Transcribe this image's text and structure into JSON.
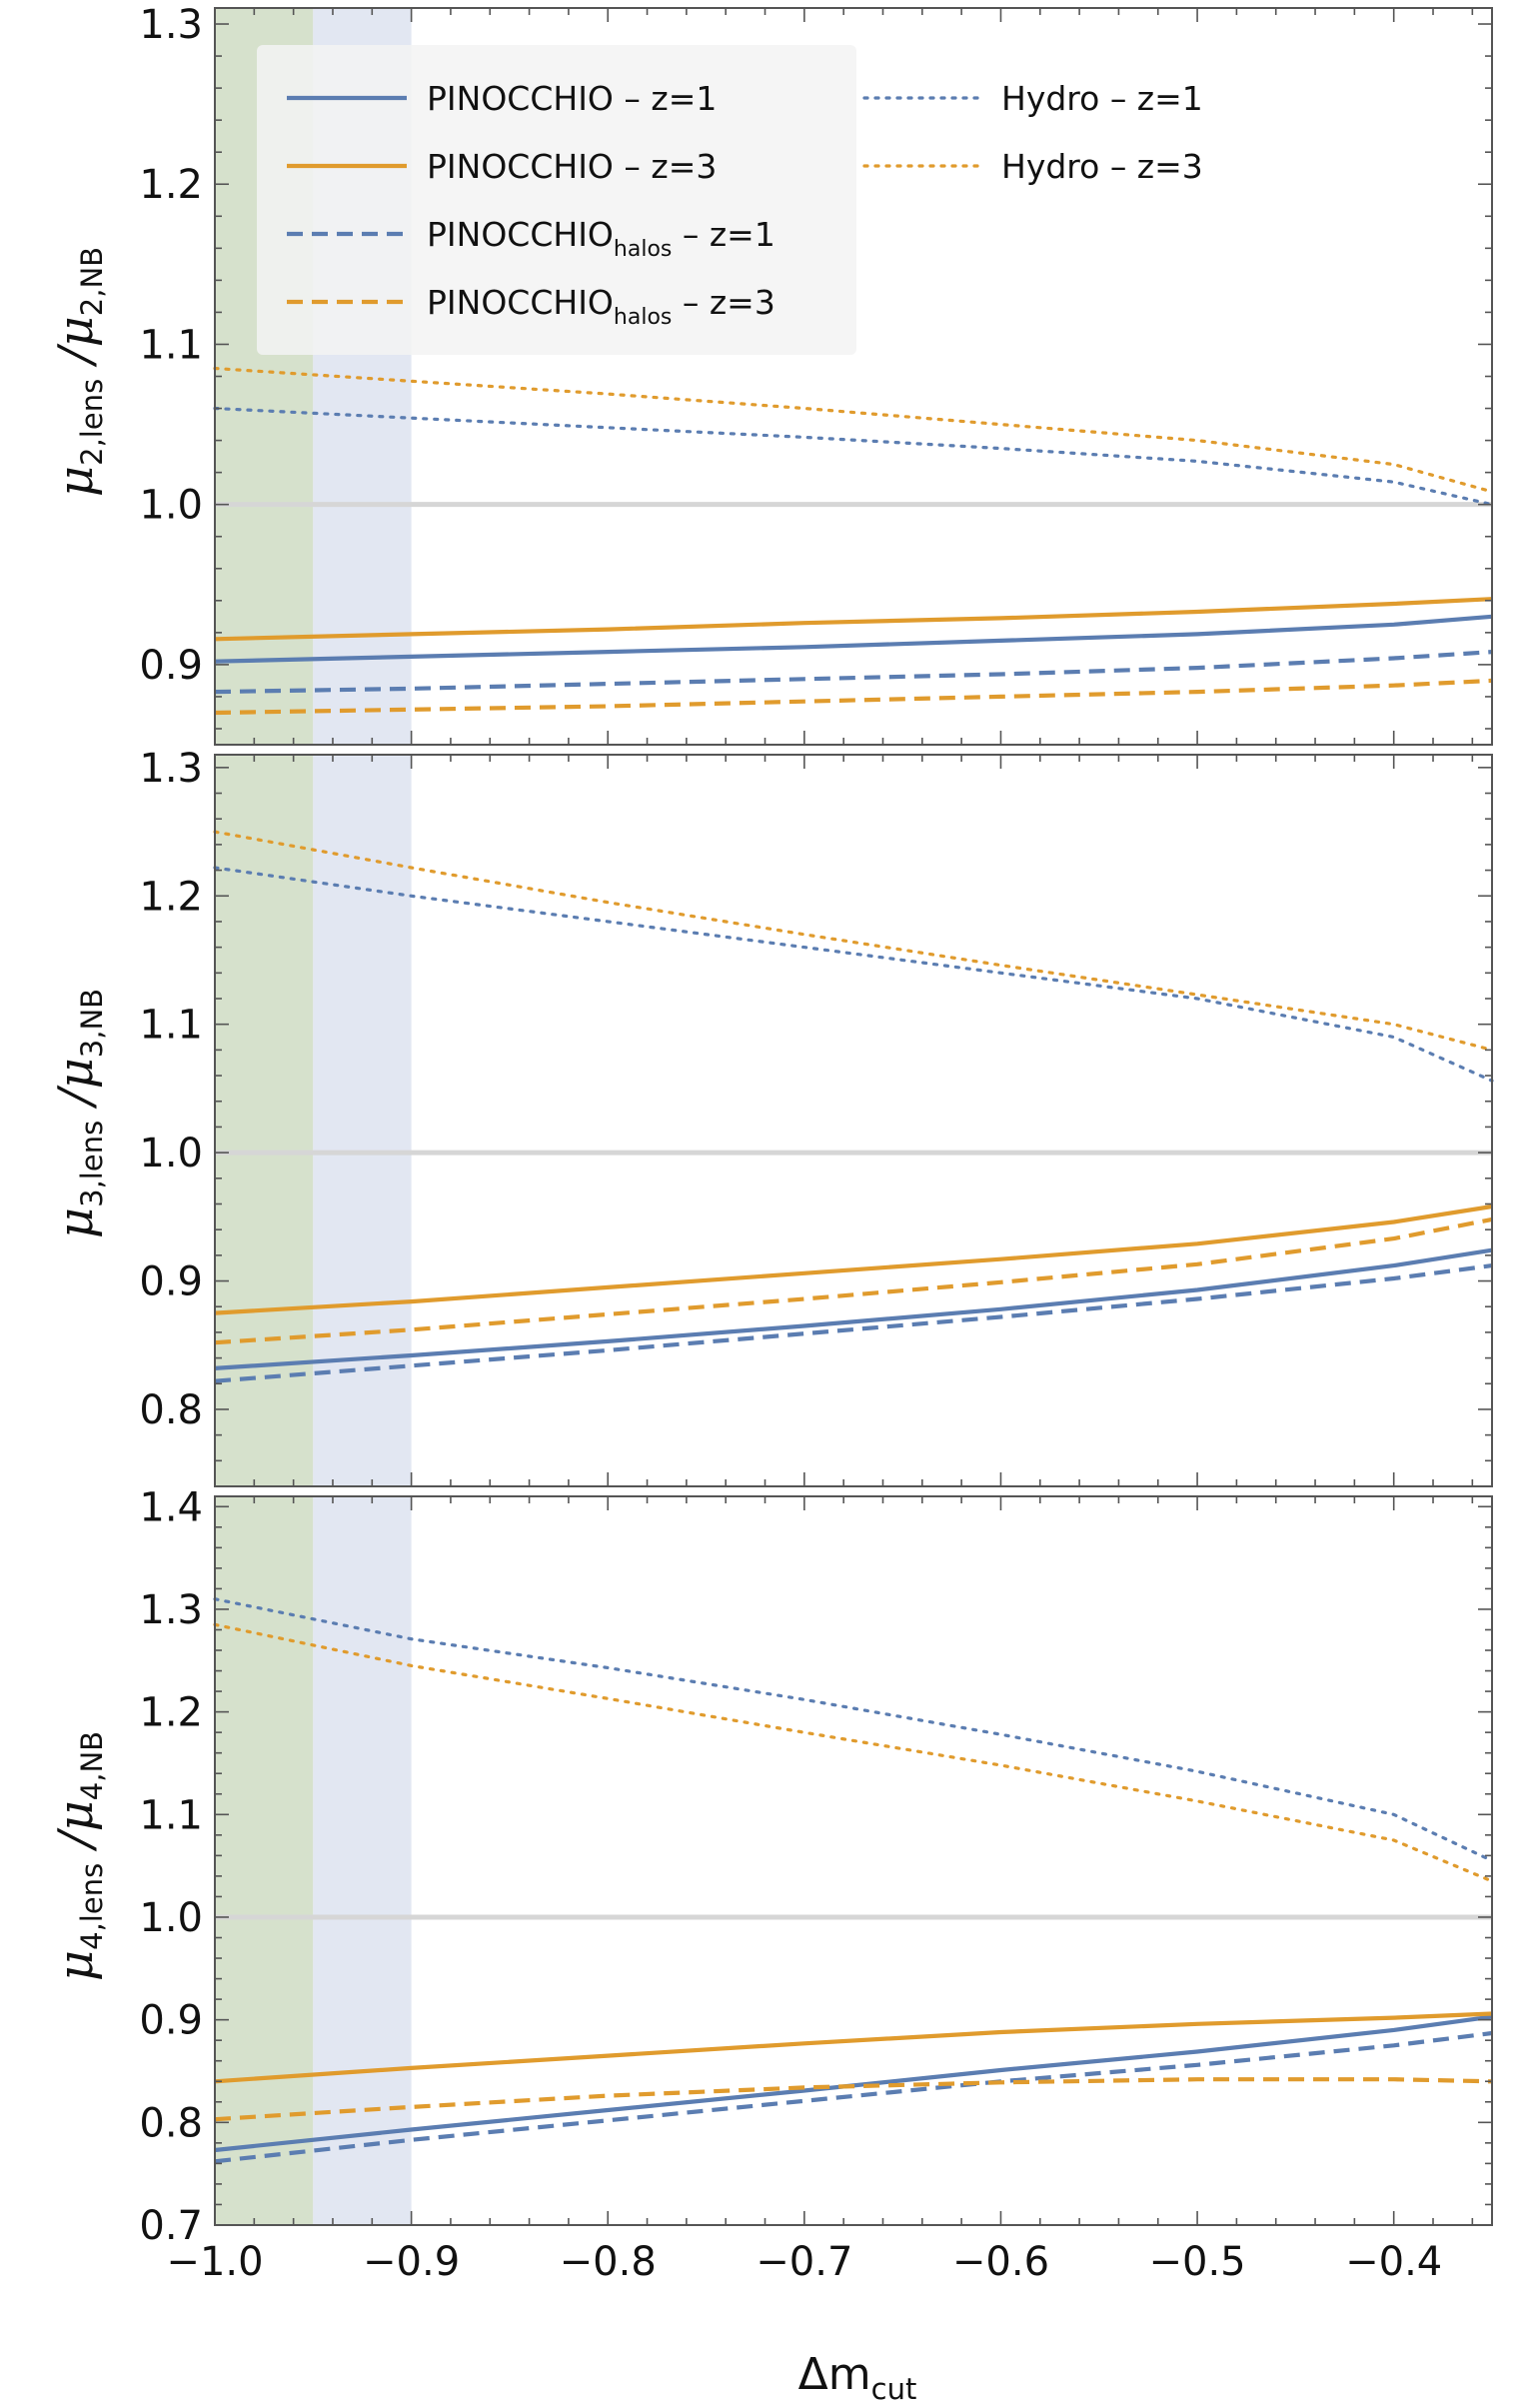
{
  "chart_data": [
    {
      "type": "line",
      "ylabel": {
        "symbol": "μ",
        "num_sub": "2,lens",
        "den_sub": "2,NB"
      },
      "ylim": [
        0.85,
        1.31
      ],
      "yticks": [
        0.9,
        1.0,
        1.1,
        1.2,
        1.3
      ],
      "ytick_labels": [
        "0.9",
        "1.0",
        "1.1",
        "1.2",
        "1.3"
      ],
      "series": [
        {
          "key": "pin_z1",
          "style": "solid",
          "color": "#5b7db1",
          "x": [
            -1.0,
            -0.9,
            -0.8,
            -0.7,
            -0.6,
            -0.5,
            -0.4,
            -0.35
          ],
          "y": [
            0.902,
            0.905,
            0.908,
            0.911,
            0.915,
            0.919,
            0.925,
            0.93
          ]
        },
        {
          "key": "pin_z3",
          "style": "solid",
          "color": "#e09b2d",
          "x": [
            -1.0,
            -0.9,
            -0.8,
            -0.7,
            -0.6,
            -0.5,
            -0.4,
            -0.35
          ],
          "y": [
            0.916,
            0.919,
            0.922,
            0.926,
            0.929,
            0.933,
            0.938,
            0.941
          ]
        },
        {
          "key": "halo_z1",
          "style": "dashed",
          "color": "#5b7db1",
          "x": [
            -1.0,
            -0.9,
            -0.8,
            -0.7,
            -0.6,
            -0.5,
            -0.4,
            -0.35
          ],
          "y": [
            0.883,
            0.885,
            0.888,
            0.891,
            0.894,
            0.898,
            0.904,
            0.908
          ]
        },
        {
          "key": "halo_z3",
          "style": "dashed",
          "color": "#e09b2d",
          "x": [
            -1.0,
            -0.9,
            -0.8,
            -0.7,
            -0.6,
            -0.5,
            -0.4,
            -0.35
          ],
          "y": [
            0.87,
            0.872,
            0.874,
            0.877,
            0.88,
            0.883,
            0.887,
            0.89
          ]
        },
        {
          "key": "hydro_z1",
          "style": "dotted",
          "color": "#5b7db1",
          "x": [
            -1.0,
            -0.9,
            -0.8,
            -0.7,
            -0.6,
            -0.5,
            -0.4,
            -0.35
          ],
          "y": [
            1.06,
            1.054,
            1.048,
            1.042,
            1.035,
            1.027,
            1.014,
            1.0
          ]
        },
        {
          "key": "hydro_z3",
          "style": "dotted",
          "color": "#e09b2d",
          "x": [
            -1.0,
            -0.9,
            -0.8,
            -0.7,
            -0.6,
            -0.5,
            -0.4,
            -0.35
          ],
          "y": [
            1.085,
            1.077,
            1.069,
            1.06,
            1.05,
            1.04,
            1.025,
            1.008
          ]
        }
      ]
    },
    {
      "type": "line",
      "ylabel": {
        "symbol": "μ",
        "num_sub": "3,lens",
        "den_sub": "3,NB"
      },
      "ylim": [
        0.74,
        1.31
      ],
      "yticks": [
        0.8,
        0.9,
        1.0,
        1.1,
        1.2,
        1.3
      ],
      "ytick_labels": [
        "0.8",
        "0.9",
        "1.0",
        "1.1",
        "1.2",
        "1.3"
      ],
      "series": [
        {
          "key": "pin_z1",
          "style": "solid",
          "color": "#5b7db1",
          "x": [
            -1.0,
            -0.9,
            -0.8,
            -0.7,
            -0.6,
            -0.5,
            -0.4,
            -0.35
          ],
          "y": [
            0.832,
            0.842,
            0.853,
            0.865,
            0.878,
            0.893,
            0.912,
            0.924
          ]
        },
        {
          "key": "pin_z3",
          "style": "solid",
          "color": "#e09b2d",
          "x": [
            -1.0,
            -0.9,
            -0.8,
            -0.7,
            -0.6,
            -0.5,
            -0.4,
            -0.35
          ],
          "y": [
            0.875,
            0.884,
            0.895,
            0.906,
            0.917,
            0.929,
            0.946,
            0.958
          ]
        },
        {
          "key": "halo_z1",
          "style": "dashed",
          "color": "#5b7db1",
          "x": [
            -1.0,
            -0.9,
            -0.8,
            -0.7,
            -0.6,
            -0.5,
            -0.4,
            -0.35
          ],
          "y": [
            0.822,
            0.834,
            0.846,
            0.859,
            0.872,
            0.886,
            0.902,
            0.912
          ]
        },
        {
          "key": "halo_z3",
          "style": "dashed",
          "color": "#e09b2d",
          "x": [
            -1.0,
            -0.9,
            -0.8,
            -0.7,
            -0.6,
            -0.5,
            -0.4,
            -0.35
          ],
          "y": [
            0.852,
            0.862,
            0.874,
            0.886,
            0.899,
            0.913,
            0.933,
            0.948
          ]
        },
        {
          "key": "hydro_z1",
          "style": "dotted",
          "color": "#5b7db1",
          "x": [
            -1.0,
            -0.9,
            -0.8,
            -0.7,
            -0.6,
            -0.5,
            -0.4,
            -0.35
          ],
          "y": [
            1.222,
            1.2,
            1.18,
            1.16,
            1.14,
            1.12,
            1.09,
            1.056
          ]
        },
        {
          "key": "hydro_z3",
          "style": "dotted",
          "color": "#e09b2d",
          "x": [
            -1.0,
            -0.9,
            -0.8,
            -0.7,
            -0.6,
            -0.5,
            -0.4,
            -0.35
          ],
          "y": [
            1.25,
            1.222,
            1.195,
            1.17,
            1.146,
            1.123,
            1.1,
            1.08
          ]
        }
      ]
    },
    {
      "type": "line",
      "ylabel": {
        "symbol": "μ",
        "num_sub": "4,lens",
        "den_sub": "4,NB"
      },
      "xlabel": {
        "main": "Δm",
        "sub": "cut"
      },
      "xlim": [
        -1.0,
        -0.35
      ],
      "xticks": [
        -1.0,
        -0.9,
        -0.8,
        -0.7,
        -0.6,
        -0.5,
        -0.4
      ],
      "xtick_labels": [
        "−1.0",
        "−0.9",
        "−0.8",
        "−0.7",
        "−0.6",
        "−0.5",
        "−0.4"
      ],
      "ylim": [
        0.7,
        1.41
      ],
      "yticks": [
        0.7,
        0.8,
        0.9,
        1.0,
        1.1,
        1.2,
        1.3,
        1.4
      ],
      "ytick_labels": [
        "0.7",
        "0.8",
        "0.9",
        "1.0",
        "1.1",
        "1.2",
        "1.3",
        "1.4"
      ],
      "series": [
        {
          "key": "pin_z1",
          "style": "solid",
          "color": "#5b7db1",
          "x": [
            -1.0,
            -0.9,
            -0.8,
            -0.7,
            -0.6,
            -0.5,
            -0.4,
            -0.35
          ],
          "y": [
            0.773,
            0.793,
            0.812,
            0.831,
            0.851,
            0.869,
            0.89,
            0.903
          ]
        },
        {
          "key": "pin_z3",
          "style": "solid",
          "color": "#e09b2d",
          "x": [
            -1.0,
            -0.9,
            -0.8,
            -0.7,
            -0.6,
            -0.5,
            -0.4,
            -0.35
          ],
          "y": [
            0.84,
            0.853,
            0.865,
            0.877,
            0.888,
            0.896,
            0.902,
            0.906
          ]
        },
        {
          "key": "halo_z1",
          "style": "dashed",
          "color": "#5b7db1",
          "x": [
            -1.0,
            -0.9,
            -0.8,
            -0.7,
            -0.6,
            -0.5,
            -0.4,
            -0.35
          ],
          "y": [
            0.762,
            0.783,
            0.802,
            0.821,
            0.84,
            0.856,
            0.875,
            0.887
          ]
        },
        {
          "key": "halo_z3",
          "style": "dashed",
          "color": "#e09b2d",
          "x": [
            -1.0,
            -0.9,
            -0.8,
            -0.7,
            -0.6,
            -0.5,
            -0.4,
            -0.35
          ],
          "y": [
            0.803,
            0.815,
            0.826,
            0.834,
            0.839,
            0.842,
            0.842,
            0.84
          ]
        },
        {
          "key": "hydro_z1",
          "style": "dotted",
          "color": "#5b7db1",
          "x": [
            -1.0,
            -0.9,
            -0.8,
            -0.7,
            -0.6,
            -0.5,
            -0.4,
            -0.35
          ],
          "y": [
            1.31,
            1.271,
            1.243,
            1.212,
            1.178,
            1.142,
            1.1,
            1.055
          ]
        },
        {
          "key": "hydro_z3",
          "style": "dotted",
          "color": "#e09b2d",
          "x": [
            -1.0,
            -0.9,
            -0.8,
            -0.7,
            -0.6,
            -0.5,
            -0.4,
            -0.35
          ],
          "y": [
            1.285,
            1.245,
            1.213,
            1.18,
            1.148,
            1.113,
            1.075,
            1.035
          ]
        }
      ]
    }
  ],
  "shading": [
    {
      "from": -1.0,
      "to": -0.95,
      "color": "#d6e1cc"
    },
    {
      "from": -0.95,
      "to": -0.9,
      "color": "#e2e7f2"
    }
  ],
  "reference_line": {
    "y": 1.0,
    "color": "#d6d6d6"
  },
  "legend": [
    {
      "key": "pin_z1",
      "style": "solid",
      "color": "#5b7db1",
      "text": "PINOCCHIO – z=1",
      "sub": ""
    },
    {
      "key": "pin_z3",
      "style": "solid",
      "color": "#e09b2d",
      "text": "PINOCCHIO – z=3",
      "sub": ""
    },
    {
      "key": "halo_z1",
      "style": "dashed",
      "color": "#5b7db1",
      "text_main": "PINOCCHIO",
      "sub": "halos",
      "text_tail": " – z=1"
    },
    {
      "key": "halo_z3",
      "style": "dashed",
      "color": "#e09b2d",
      "text_main": "PINOCCHIO",
      "sub": "halos",
      "text_tail": " – z=3"
    },
    {
      "key": "hydro_z1",
      "style": "dotted",
      "color": "#5b7db1",
      "text": "Hydro – z=1",
      "sub": ""
    },
    {
      "key": "hydro_z3",
      "style": "dotted",
      "color": "#e09b2d",
      "text": "Hydro – z=3",
      "sub": ""
    }
  ]
}
